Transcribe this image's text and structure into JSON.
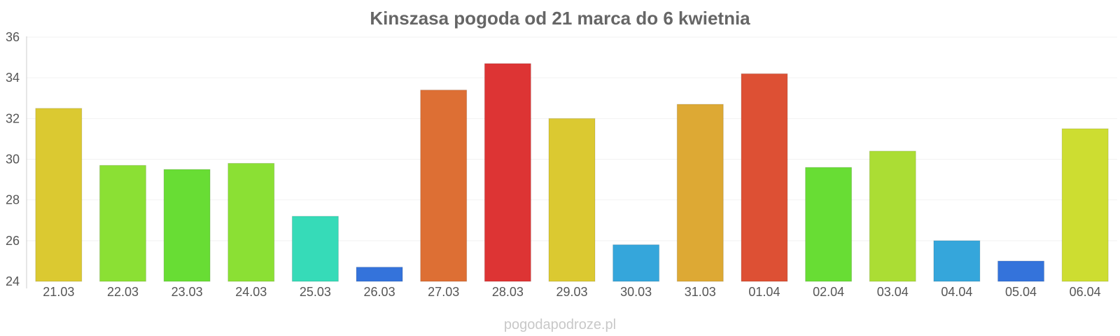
{
  "chart_data": {
    "type": "bar",
    "title": "Kinszasa pogoda od 21 marca do 6 kwietnia",
    "categories": [
      "21.03",
      "22.03",
      "23.03",
      "24.03",
      "25.03",
      "26.03",
      "27.03",
      "28.03",
      "29.03",
      "30.03",
      "31.03",
      "01.04",
      "02.04",
      "03.04",
      "04.04",
      "05.04",
      "06.04"
    ],
    "values": [
      32.5,
      29.7,
      29.5,
      29.8,
      27.2,
      24.7,
      33.4,
      34.7,
      32.0,
      25.8,
      32.7,
      34.2,
      29.6,
      30.4,
      26.0,
      25.0,
      31.5
    ],
    "colors": [
      "#dbc931",
      "#8be034",
      "#68dd34",
      "#8be034",
      "#36dbb8",
      "#3473db",
      "#dd6f34",
      "#dd3434",
      "#dbc931",
      "#35a6db",
      "#dda934",
      "#dd5034",
      "#68dd34",
      "#abdd34",
      "#35a6db",
      "#3473db",
      "#cddd31"
    ],
    "ylim": [
      24,
      36
    ],
    "yticks": [
      24,
      26,
      28,
      30,
      32,
      34,
      36
    ],
    "xlabel": "",
    "ylabel": "",
    "grid": true
  },
  "credit": "pogodapodroze.pl"
}
